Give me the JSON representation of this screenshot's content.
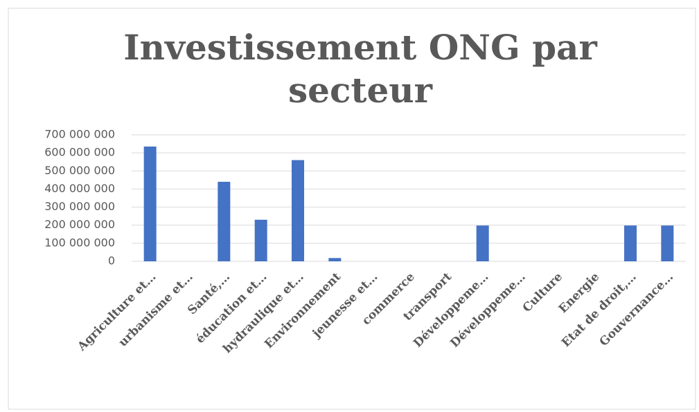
{
  "chart_data": {
    "type": "bar",
    "title": "Investissement ONG par secteur",
    "categories": [
      "Agriculture et…",
      "urbanisme et…",
      "Santé,…",
      "éducation et…",
      "hydraulique et…",
      "Environnement",
      "jeunesse et…",
      "commerce",
      "transport",
      "Développeme…",
      "Développeme…",
      "Culture",
      "Energie",
      "Etat de droit,…",
      "Gouvernance…"
    ],
    "values": [
      635000000,
      0,
      440000000,
      230000000,
      560000000,
      18000000,
      0,
      0,
      0,
      198000000,
      0,
      0,
      0,
      198000000,
      198000000
    ],
    "color": "#4472c4",
    "ylim": [
      0,
      700000000
    ],
    "yticks": [
      {
        "value": 0,
        "label": "0"
      },
      {
        "value": 100000000,
        "label": "100 000 000"
      },
      {
        "value": 200000000,
        "label": "200 000 000"
      },
      {
        "value": 300000000,
        "label": "300 000 000"
      },
      {
        "value": 400000000,
        "label": "400 000 000"
      },
      {
        "value": 500000000,
        "label": "500 000 000"
      },
      {
        "value": 600000000,
        "label": "600 000 000"
      },
      {
        "value": 700000000,
        "label": "700 000 000"
      }
    ],
    "grid": true
  }
}
